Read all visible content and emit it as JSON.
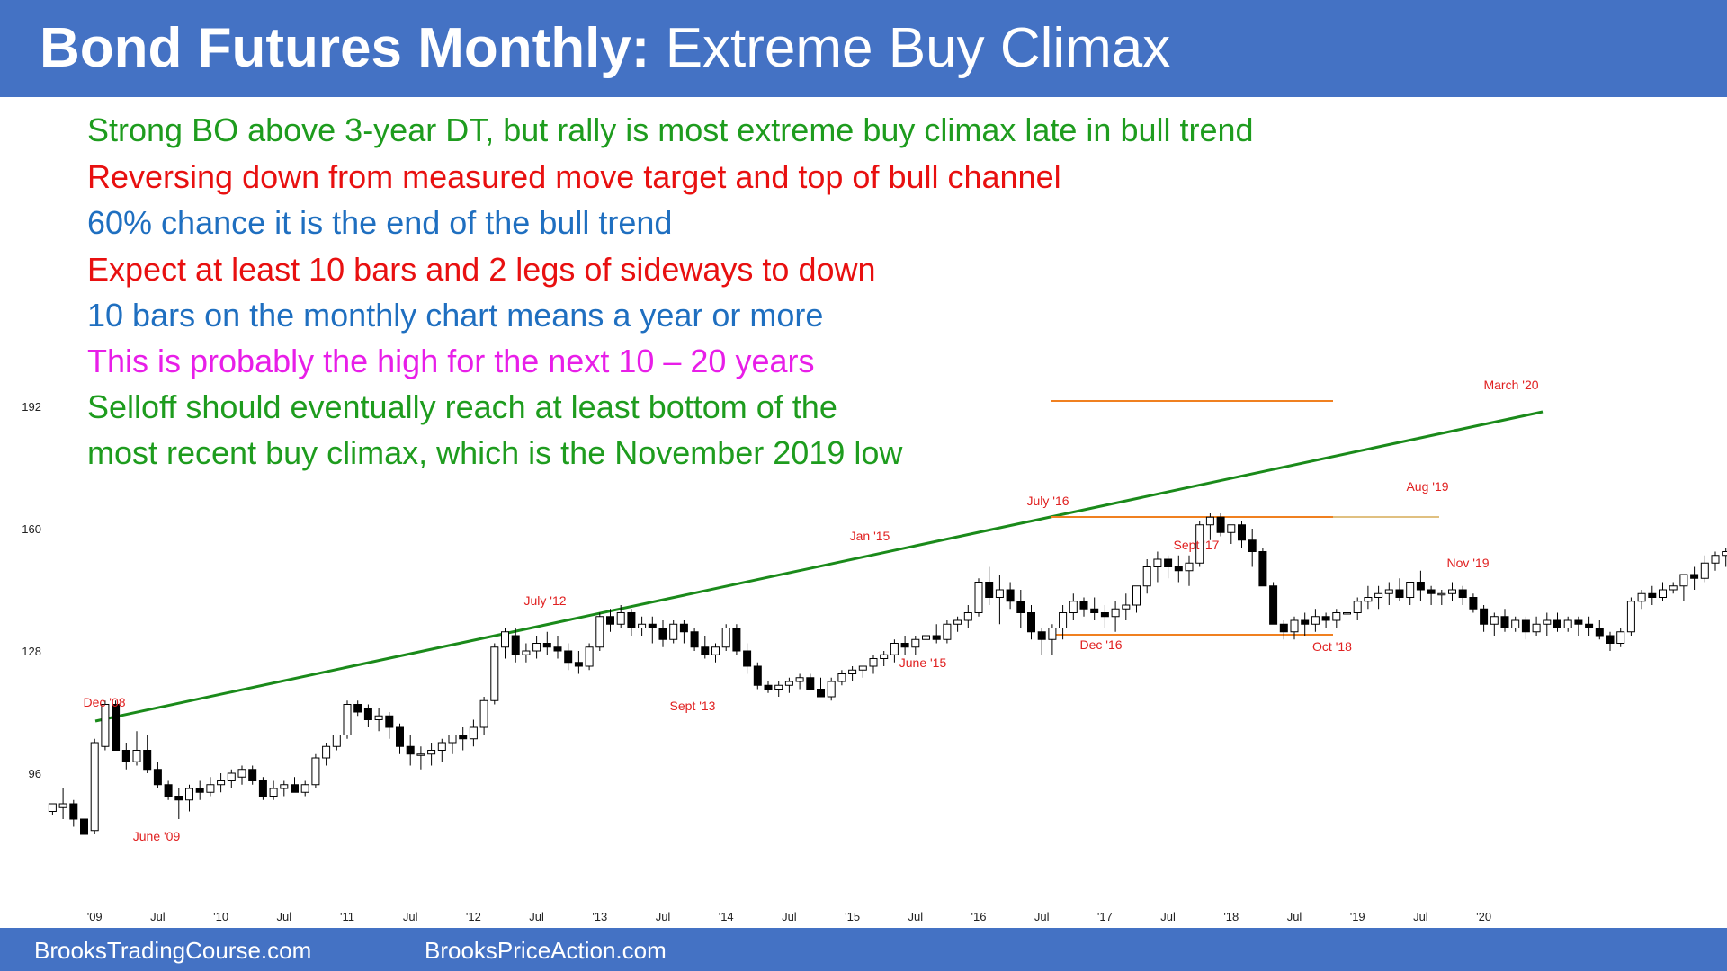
{
  "header": {
    "title_bold": "Bond Futures Monthly:",
    "title_rest": "Extreme Buy Climax",
    "background": "#4472c4"
  },
  "annotations": [
    {
      "text": "Strong BO above 3-year DT, but rally is most extreme buy climax late in bull trend",
      "color": "#1e9c1e"
    },
    {
      "text": "Reversing down from measured move target and top of bull channel",
      "color": "#e81010"
    },
    {
      "text": "60% chance it is the end of the bull trend",
      "color": "#1f6fc0"
    },
    {
      "text": "Expect at least 10 bars and 2 legs of sideways to down",
      "color": "#e81010"
    },
    {
      "text": "10 bars on the monthly chart means a year or more",
      "color": "#1f6fc0"
    },
    {
      "text": "This is probably the high for the next 10 – 20 years",
      "color": "#e81ee8"
    },
    {
      "text": "Selloff should eventually reach at least bottom of the",
      "color": "#1e9c1e"
    },
    {
      "text": "most recent buy climax, which is the November 2019 low",
      "color": "#1e9c1e"
    }
  ],
  "footer": {
    "left": "BrooksTradingCourse.com",
    "right": "BrooksPriceAction.com"
  },
  "chart_data": {
    "type": "candlestick",
    "title": "",
    "y_ticks": [
      96,
      128,
      160,
      192
    ],
    "ylim": [
      74,
      202
    ],
    "x_tick_labels": [
      "'09",
      "Jul",
      "'10",
      "Jul",
      "'11",
      "Jul",
      "'12",
      "Jul",
      "'13",
      "Jul",
      "'14",
      "Jul",
      "'15",
      "Jul",
      "'16",
      "Jul",
      "'17",
      "Jul",
      "'18",
      "Jul",
      "'19",
      "Jul",
      "'20"
    ],
    "start_month": "2008-09",
    "ohlc": [
      [
        86,
        88,
        85,
        88
      ],
      [
        87,
        92,
        84,
        88
      ],
      [
        88,
        89,
        82,
        84
      ],
      [
        84,
        84,
        80,
        80
      ],
      [
        81,
        105,
        80,
        104
      ],
      [
        103,
        115,
        102,
        114
      ],
      [
        114,
        115,
        102,
        102
      ],
      [
        102,
        104,
        97,
        99
      ],
      [
        99,
        107,
        98,
        102
      ],
      [
        102,
        106,
        96,
        97
      ],
      [
        97,
        99,
        92,
        93
      ],
      [
        93,
        94,
        89,
        90
      ],
      [
        90,
        92,
        84,
        89
      ],
      [
        89,
        93,
        86,
        92
      ],
      [
        92,
        94,
        89,
        91
      ],
      [
        91,
        95,
        90,
        93
      ],
      [
        93,
        96,
        91,
        94
      ],
      [
        94,
        97,
        92,
        96
      ],
      [
        95,
        98,
        93,
        97
      ],
      [
        97,
        98,
        93,
        94
      ],
      [
        94,
        95,
        89,
        90
      ],
      [
        90,
        94,
        89,
        92
      ],
      [
        92,
        94,
        90,
        93
      ],
      [
        93,
        95,
        91,
        91
      ],
      [
        91,
        94,
        90,
        93
      ],
      [
        93,
        101,
        92,
        100
      ],
      [
        100,
        104,
        98,
        103
      ],
      [
        103,
        106,
        102,
        106
      ],
      [
        106,
        115,
        105,
        114
      ],
      [
        114,
        115,
        111,
        112
      ],
      [
        113,
        114,
        108,
        110
      ],
      [
        110,
        113,
        107,
        111
      ],
      [
        111,
        112,
        105,
        108
      ],
      [
        108,
        109,
        101,
        103
      ],
      [
        103,
        106,
        98,
        101
      ],
      [
        101,
        103,
        97,
        101
      ],
      [
        101,
        104,
        98,
        102
      ],
      [
        102,
        105,
        99,
        104
      ],
      [
        104,
        106,
        101,
        106
      ],
      [
        106,
        108,
        102,
        105
      ],
      [
        105,
        110,
        103,
        108
      ],
      [
        108,
        116,
        106,
        115
      ],
      [
        115,
        130,
        114,
        129
      ],
      [
        129,
        134,
        126,
        133
      ],
      [
        132,
        134,
        125,
        127
      ],
      [
        127,
        130,
        125,
        128
      ],
      [
        128,
        132,
        126,
        130
      ],
      [
        130,
        133,
        127,
        129
      ],
      [
        129,
        132,
        126,
        128
      ],
      [
        128,
        130,
        123,
        125
      ],
      [
        125,
        128,
        122,
        124
      ],
      [
        124,
        130,
        123,
        129
      ],
      [
        129,
        138,
        128,
        137
      ],
      [
        137,
        139,
        133,
        135
      ],
      [
        135,
        140,
        134,
        138
      ],
      [
        138,
        139,
        132,
        134
      ],
      [
        134,
        137,
        132,
        135
      ],
      [
        135,
        137,
        130,
        134
      ],
      [
        134,
        136,
        129,
        131
      ],
      [
        131,
        136,
        130,
        135
      ],
      [
        135,
        136,
        130,
        133
      ],
      [
        133,
        134,
        128,
        129
      ],
      [
        129,
        132,
        126,
        127
      ],
      [
        127,
        130,
        125,
        129
      ],
      [
        129,
        135,
        128,
        134
      ],
      [
        134,
        135,
        127,
        128
      ],
      [
        128,
        130,
        122,
        124
      ],
      [
        124,
        125,
        118,
        119
      ],
      [
        119,
        120,
        117,
        118
      ],
      [
        118,
        120,
        116,
        119
      ],
      [
        119,
        121,
        117,
        120
      ],
      [
        120,
        122,
        118,
        121
      ],
      [
        121,
        122,
        118,
        118
      ],
      [
        118,
        121,
        116,
        116
      ],
      [
        116,
        121,
        115,
        120
      ],
      [
        120,
        123,
        119,
        122
      ],
      [
        122,
        124,
        120,
        123
      ],
      [
        123,
        124,
        121,
        124
      ],
      [
        124,
        127,
        122,
        126
      ],
      [
        126,
        128,
        124,
        127
      ],
      [
        127,
        131,
        125,
        130
      ],
      [
        130,
        132,
        127,
        129
      ],
      [
        129,
        132,
        127,
        131
      ],
      [
        131,
        134,
        129,
        132
      ],
      [
        132,
        135,
        130,
        131
      ],
      [
        131,
        136,
        130,
        135
      ],
      [
        135,
        137,
        133,
        136
      ],
      [
        136,
        140,
        134,
        138
      ],
      [
        138,
        147,
        137,
        146
      ],
      [
        146,
        150,
        140,
        142
      ],
      [
        142,
        148,
        135,
        144
      ],
      [
        144,
        146,
        139,
        141
      ],
      [
        141,
        144,
        134,
        138
      ],
      [
        138,
        140,
        131,
        133
      ],
      [
        133,
        134,
        127,
        131
      ],
      [
        131,
        135,
        127,
        134
      ],
      [
        134,
        140,
        131,
        138
      ],
      [
        138,
        143,
        136,
        141
      ],
      [
        141,
        142,
        137,
        139
      ],
      [
        139,
        142,
        136,
        138
      ],
      [
        138,
        140,
        134,
        137
      ],
      [
        137,
        141,
        133,
        139
      ],
      [
        139,
        143,
        136,
        140
      ],
      [
        140,
        145,
        138,
        145
      ],
      [
        145,
        152,
        143,
        150
      ],
      [
        150,
        154,
        146,
        152
      ],
      [
        152,
        153,
        147,
        150
      ],
      [
        150,
        153,
        146,
        149
      ],
      [
        149,
        153,
        145,
        151
      ],
      [
        151,
        162,
        150,
        161
      ],
      [
        161,
        164,
        157,
        163
      ],
      [
        163,
        164,
        158,
        159
      ],
      [
        159,
        161,
        156,
        161
      ],
      [
        161,
        162,
        155,
        157
      ],
      [
        157,
        160,
        150,
        154
      ],
      [
        154,
        155,
        145,
        145
      ],
      [
        145,
        146,
        135,
        135
      ],
      [
        135,
        136,
        131,
        133
      ],
      [
        133,
        137,
        131,
        136
      ],
      [
        136,
        138,
        132,
        135
      ],
      [
        135,
        139,
        133,
        137
      ],
      [
        137,
        138,
        134,
        136
      ],
      [
        136,
        139,
        134,
        138
      ],
      [
        138,
        139,
        132,
        138
      ],
      [
        138,
        142,
        136,
        141
      ],
      [
        141,
        145,
        139,
        142
      ],
      [
        142,
        145,
        139,
        143
      ],
      [
        143,
        146,
        140,
        144
      ],
      [
        144,
        147,
        141,
        142
      ],
      [
        142,
        146,
        140,
        146
      ],
      [
        146,
        149,
        141,
        144
      ],
      [
        144,
        145,
        140,
        143
      ],
      [
        143,
        144,
        140,
        143
      ],
      [
        143,
        146,
        141,
        144
      ],
      [
        144,
        145,
        140,
        142
      ],
      [
        142,
        143,
        138,
        139
      ],
      [
        139,
        140,
        133,
        135
      ],
      [
        135,
        138,
        132,
        137
      ],
      [
        137,
        139,
        133,
        134
      ],
      [
        134,
        137,
        133,
        136
      ],
      [
        136,
        137,
        131,
        133
      ],
      [
        133,
        137,
        132,
        135
      ],
      [
        135,
        138,
        132,
        136
      ],
      [
        136,
        138,
        133,
        134
      ],
      [
        134,
        137,
        133,
        136
      ],
      [
        136,
        137,
        132,
        135
      ],
      [
        135,
        137,
        132,
        134
      ],
      [
        134,
        136,
        131,
        132
      ],
      [
        132,
        133,
        128,
        130
      ],
      [
        130,
        134,
        129,
        133
      ],
      [
        133,
        142,
        132,
        141
      ],
      [
        141,
        144,
        139,
        143
      ],
      [
        143,
        145,
        140,
        142
      ],
      [
        142,
        146,
        141,
        144
      ],
      [
        144,
        146,
        143,
        145
      ],
      [
        145,
        147,
        141,
        148
      ],
      [
        148,
        150,
        144,
        147
      ],
      [
        147,
        153,
        146,
        151
      ],
      [
        151,
        154,
        149,
        153
      ],
      [
        153,
        155,
        150,
        154
      ],
      [
        154,
        157,
        151,
        155
      ],
      [
        155,
        166,
        154,
        165
      ],
      [
        165,
        166,
        158,
        163
      ],
      [
        163,
        164,
        158,
        161
      ],
      [
        161,
        163,
        157,
        161
      ],
      [
        161,
        163,
        156,
        159
      ],
      [
        159,
        161,
        154,
        156
      ],
      [
        156,
        160,
        154,
        159
      ],
      [
        158,
        166,
        157,
        165
      ],
      [
        165,
        174,
        164,
        173
      ],
      [
        173,
        192,
        167,
        183
      ],
      [
        183,
        185,
        179,
        181
      ]
    ]
  }
}
